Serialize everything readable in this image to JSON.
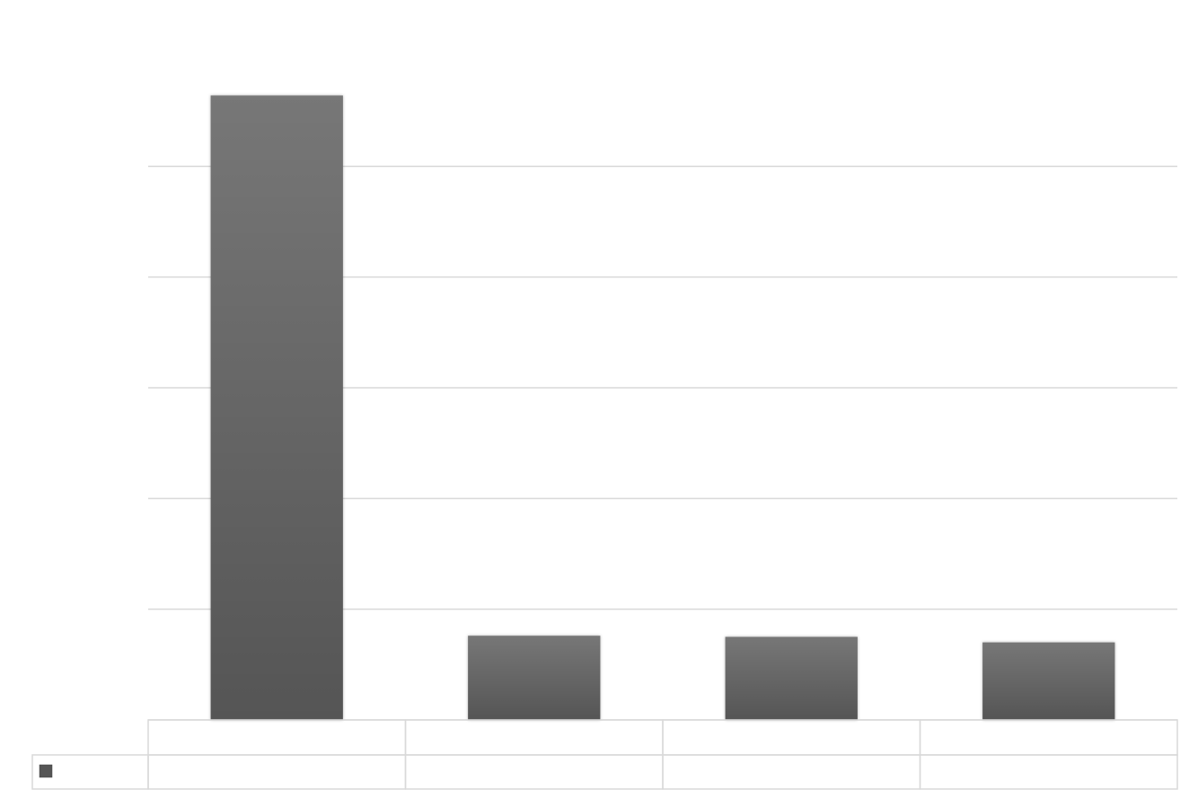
{
  "chart_data": {
    "type": "bar",
    "categories": [
      null,
      null,
      null,
      null
    ],
    "values": [
      5.64,
      0.76,
      0.75,
      0.7
    ],
    "color": "#555555",
    "ylim": [
      0,
      6
    ],
    "yticks": [
      0,
      1,
      2,
      3,
      4,
      5
    ],
    "grid": true,
    "data_table": true
  }
}
